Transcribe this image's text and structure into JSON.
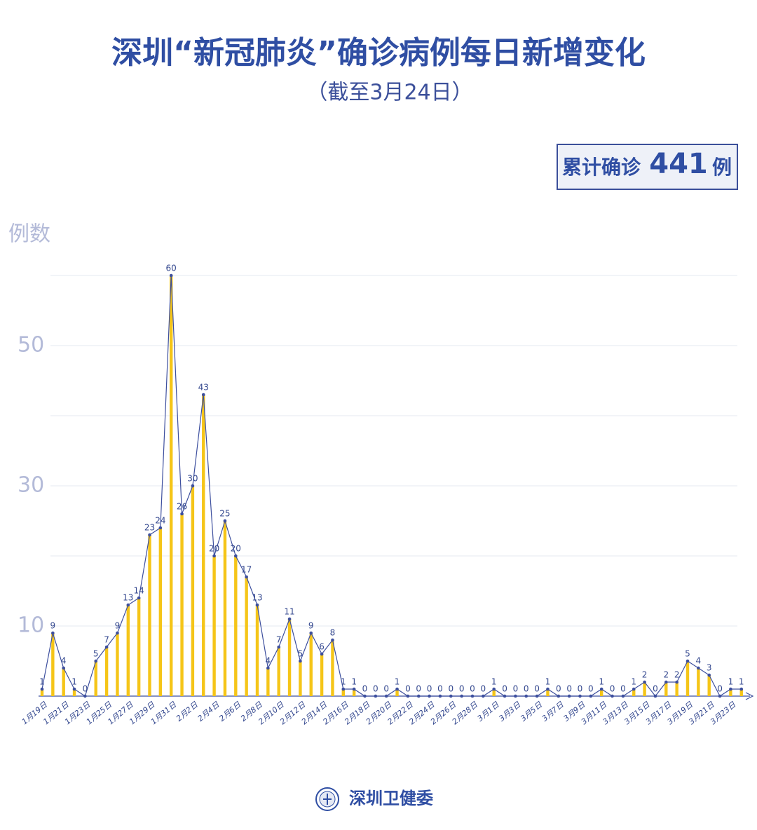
{
  "chart_data": {
    "type": "bar-line",
    "title": "深圳“新冠肺炎”确诊病例每日新增变化",
    "subtitle": "（截至3月24日）",
    "total_prefix": "累计确诊",
    "total": 441,
    "total_suffix": "例",
    "y_label": "例数",
    "source": "深圳卫健委",
    "categories": [
      "1月19日",
      null,
      "1月21日",
      null,
      "1月23日",
      null,
      "1月25日",
      null,
      "1月27日",
      null,
      "1月29日",
      null,
      "1月31日",
      null,
      "2月2日",
      null,
      "2月4日",
      null,
      "2月6日",
      null,
      "2月8日",
      null,
      "2月10日",
      null,
      "2月12日",
      null,
      "2月14日",
      null,
      "2月16日",
      null,
      "2月18日",
      null,
      "2月20日",
      null,
      "2月22日",
      null,
      "2月24日",
      null,
      "2月26日",
      null,
      "2月28日",
      null,
      "3月1日",
      null,
      "3月3日",
      null,
      "3月5日",
      null,
      "3月7日",
      null,
      "3月9日",
      null,
      "3月11日",
      null,
      "3月13日",
      null,
      "3月15日",
      null,
      "3月17日",
      null,
      "3月19日",
      null,
      "3月21日",
      null,
      "3月23日",
      null
    ],
    "values": [
      1,
      9,
      4,
      1,
      0,
      5,
      7,
      9,
      13,
      14,
      23,
      24,
      60,
      26,
      30,
      43,
      20,
      25,
      20,
      17,
      13,
      4,
      7,
      11,
      5,
      9,
      6,
      8,
      1,
      1,
      0,
      0,
      0,
      1,
      0,
      0,
      0,
      0,
      0,
      0,
      0,
      0,
      1,
      0,
      0,
      0,
      0,
      1,
      0,
      0,
      0,
      0,
      1,
      0,
      0,
      1,
      2,
      0,
      2,
      2,
      5,
      4,
      3,
      0,
      1,
      1
    ],
    "bar_color": "#f5c518",
    "line_color": "#3d4f9e",
    "ylim": [
      0,
      60
    ],
    "yticks": [
      10,
      30,
      50
    ],
    "ygrid": [
      10,
      20,
      30,
      40,
      50,
      60
    ]
  }
}
